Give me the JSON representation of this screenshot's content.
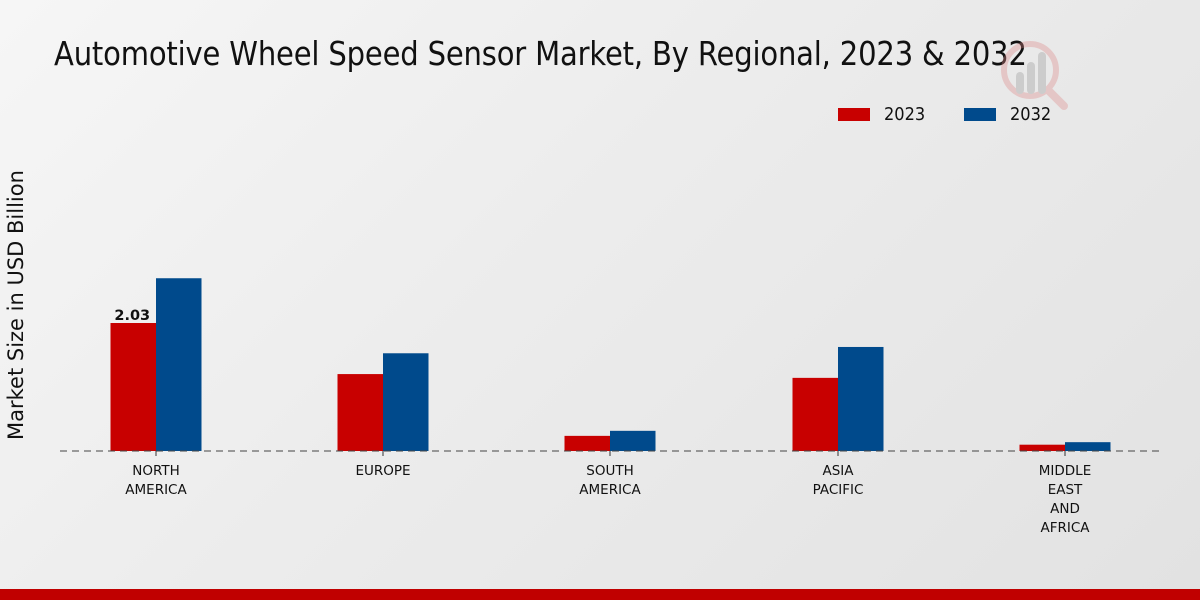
{
  "chart_data": {
    "type": "bar",
    "title": "Automotive Wheel Speed Sensor Market, By Regional, 2023 & 2032",
    "xlabel": "",
    "ylabel": "Market Size in USD Billion",
    "categories": [
      [
        "NORTH",
        "AMERICA"
      ],
      [
        "EUROPE"
      ],
      [
        "SOUTH",
        "AMERICA"
      ],
      [
        "ASIA",
        "PACIFIC"
      ],
      [
        "MIDDLE",
        "EAST",
        "AND",
        "AFRICA"
      ]
    ],
    "category_names": [
      "NORTH AMERICA",
      "EUROPE",
      "SOUTH AMERICA",
      "ASIA PACIFIC",
      "MIDDLE EAST AND AFRICA"
    ],
    "series": [
      {
        "name": "2023",
        "color": "#c80000",
        "values": [
          2.03,
          1.22,
          0.24,
          1.16,
          0.1
        ]
      },
      {
        "name": "2032",
        "color": "#004a8c",
        "values": [
          2.74,
          1.55,
          0.32,
          1.65,
          0.14
        ]
      }
    ],
    "data_labels": [
      {
        "series": 0,
        "index": 0,
        "text": "2.03"
      }
    ],
    "ylim": [
      0,
      3.0
    ],
    "grid": false,
    "legend_position": "top-right",
    "baseline_style": "dashed"
  },
  "colors": {
    "accent_bar": "#c00000"
  }
}
